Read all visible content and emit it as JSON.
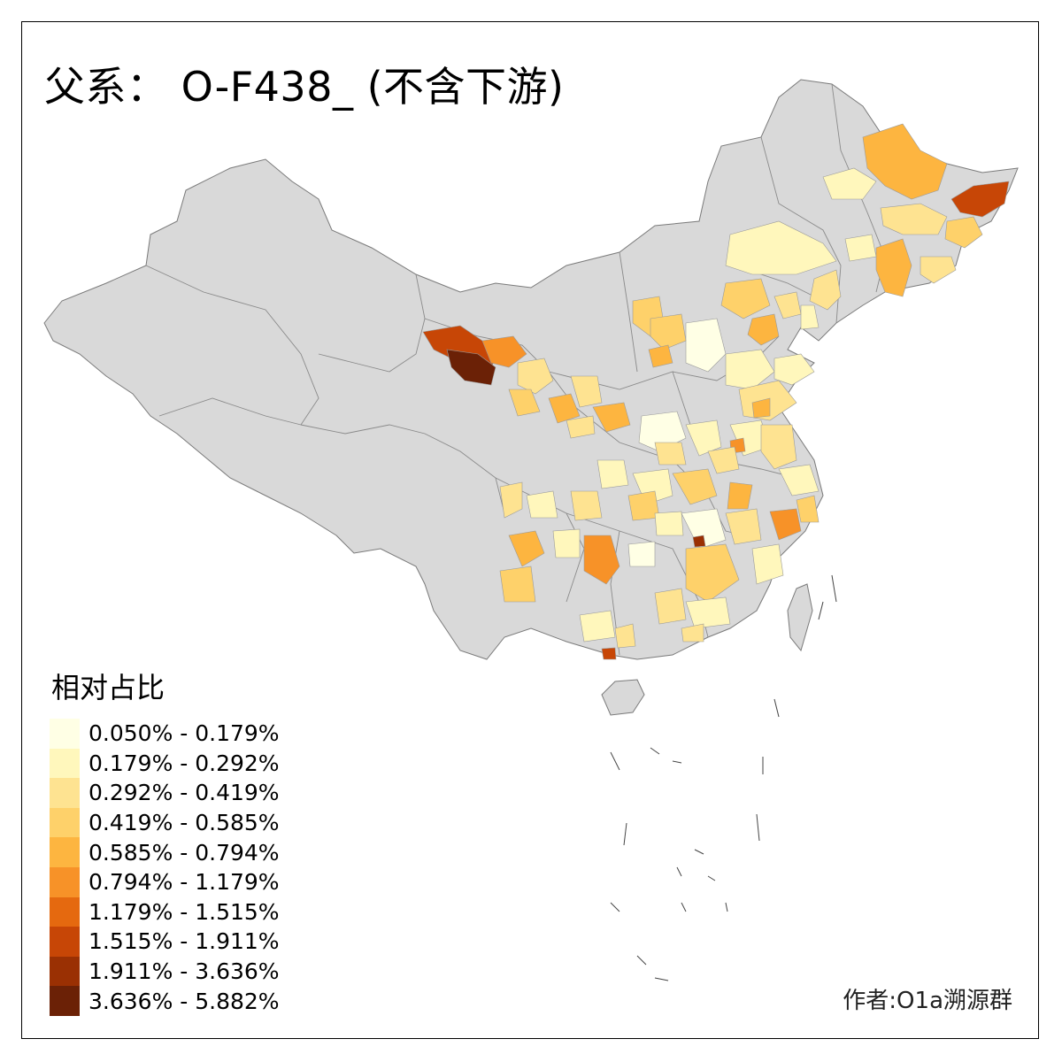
{
  "title": "父系： O-F438_ (不含下游)",
  "legend": {
    "title": "相对占比",
    "items": [
      {
        "label": "0.050% - 0.179%",
        "color": "#ffffe5"
      },
      {
        "label": "0.179% - 0.292%",
        "color": "#fff7bc"
      },
      {
        "label": "0.292% - 0.419%",
        "color": "#fee391"
      },
      {
        "label": "0.419% - 0.585%",
        "color": "#fed16a"
      },
      {
        "label": "0.585% - 0.794%",
        "color": "#fdb540"
      },
      {
        "label": "0.794% - 1.179%",
        "color": "#f79228"
      },
      {
        "label": "1.179% - 1.515%",
        "color": "#e5690f"
      },
      {
        "label": "1.515% - 1.911%",
        "color": "#c74606"
      },
      {
        "label": "1.911% - 3.636%",
        "color": "#9a3003"
      },
      {
        "label": "3.636% - 5.882%",
        "color": "#6b2106"
      }
    ]
  },
  "author": "作者:O1a溯源群",
  "colors": {
    "land": "#d9d9d9",
    "border": "#7a7a7a",
    "frame": "#000000"
  }
}
